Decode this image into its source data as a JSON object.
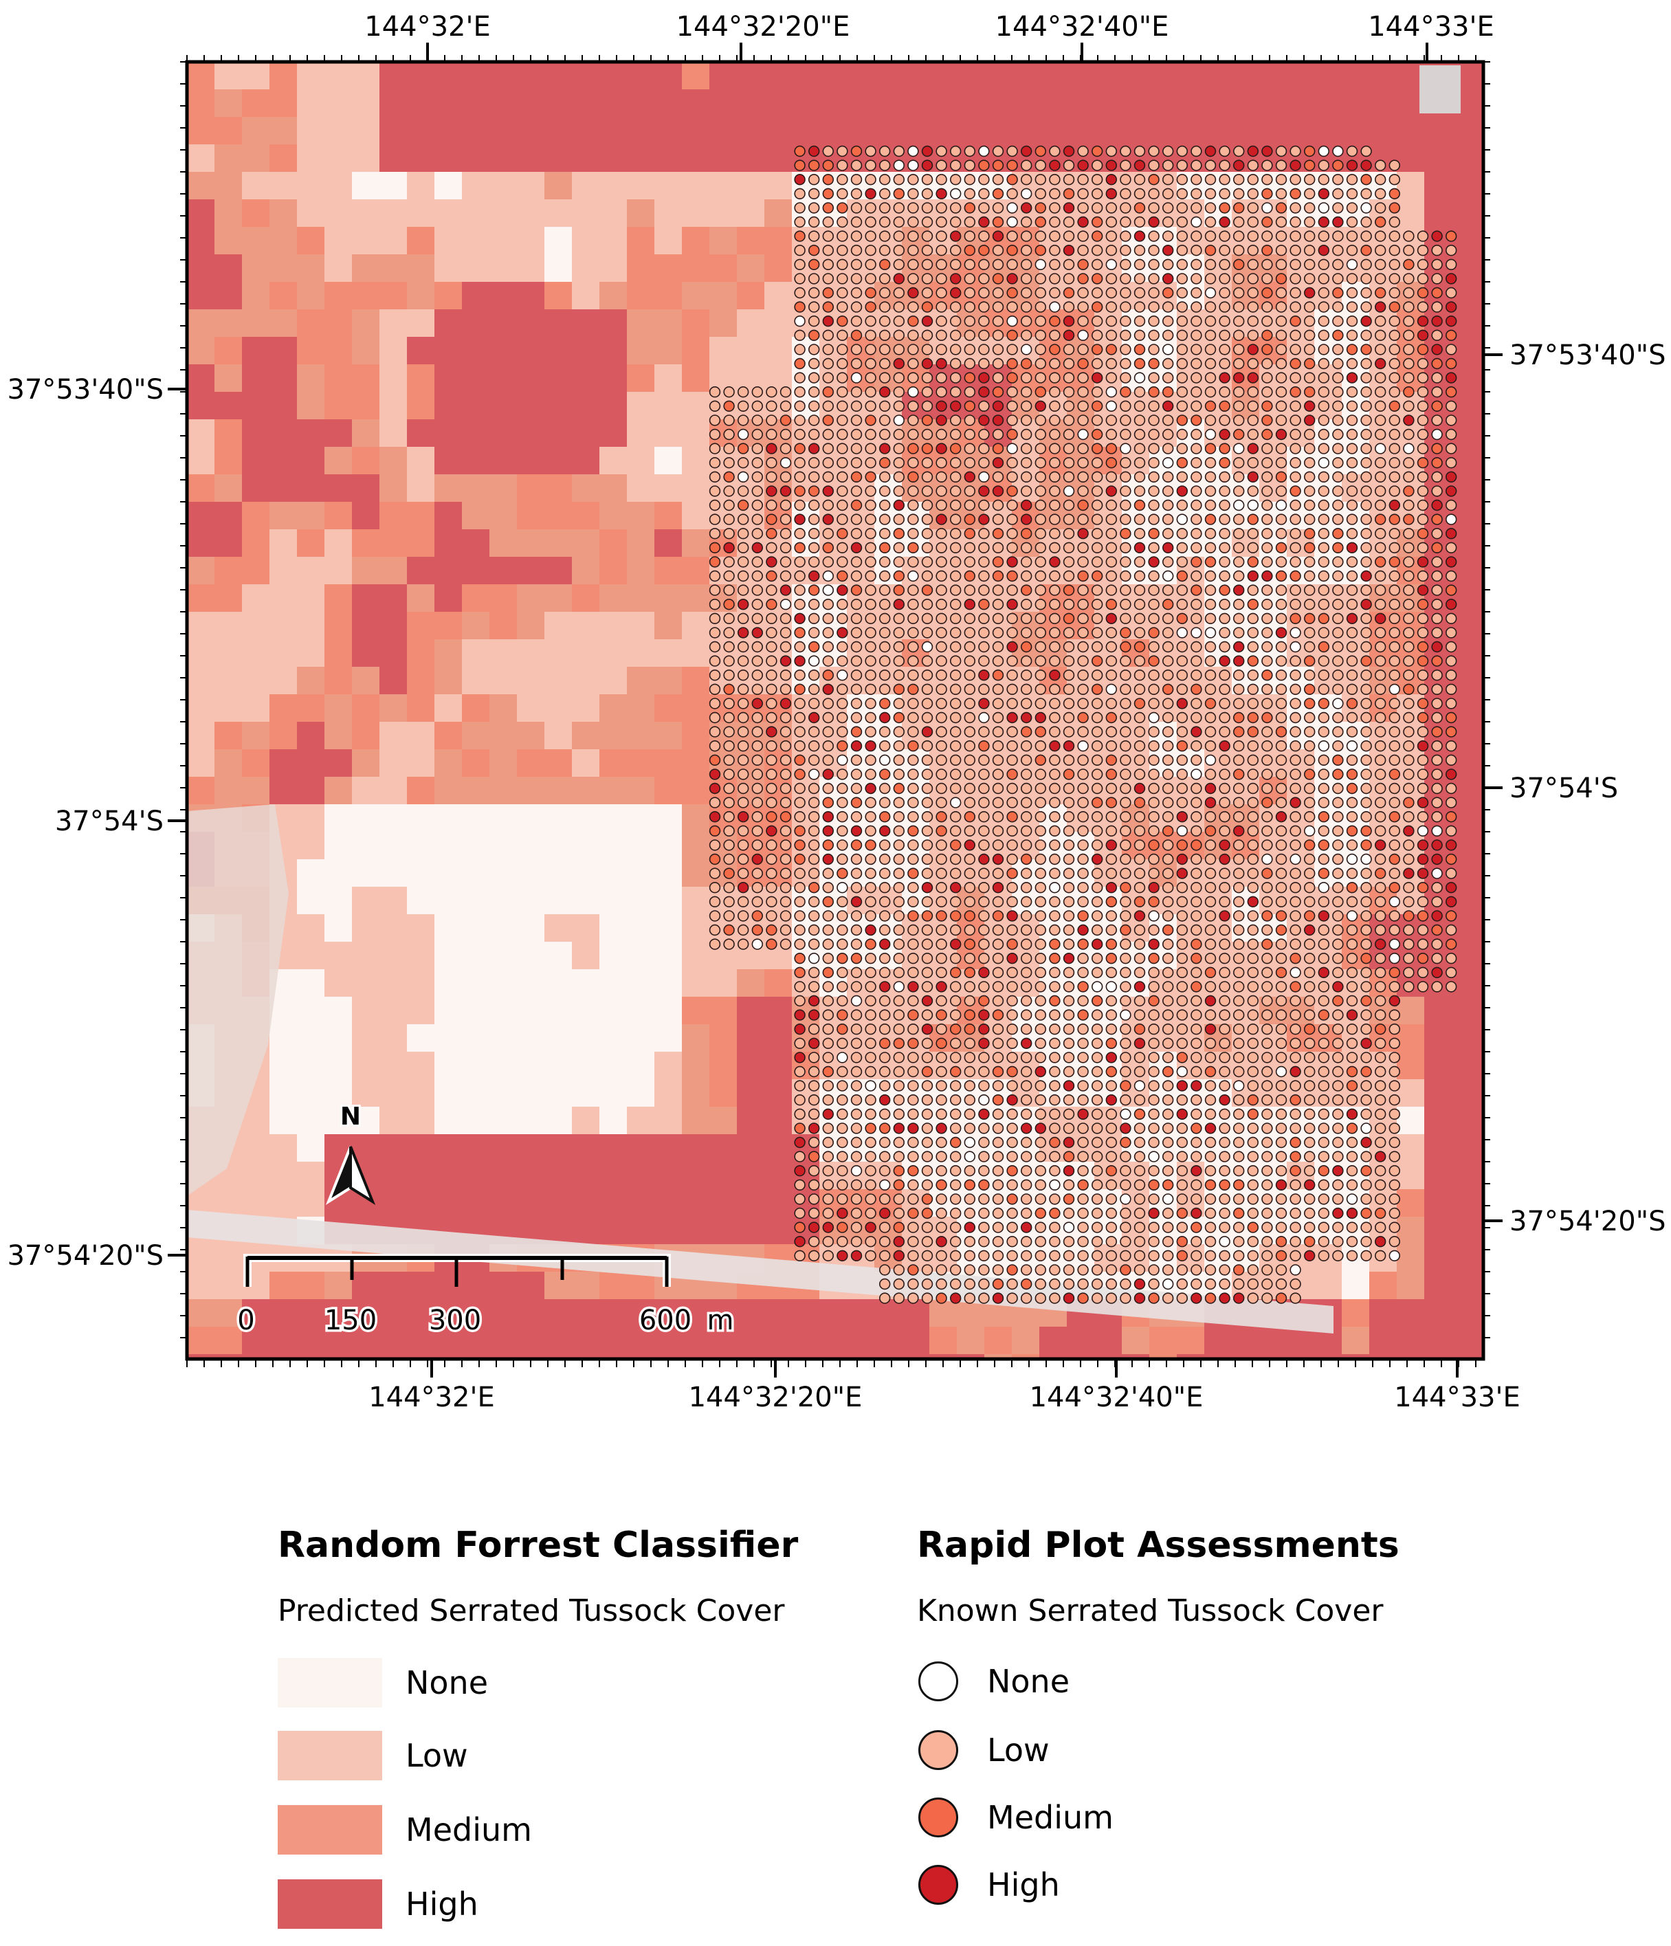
{
  "map": {
    "lon_labels": [
      "144°32'E",
      "144°32'20\"E",
      "144°32'40\"E",
      "144°33'E"
    ],
    "lat_labels": [
      "37°53'40\"S",
      "37°54'S",
      "37°54'20\"S"
    ],
    "north_label": "N",
    "scale": {
      "ticks": [
        "0",
        "150",
        "300",
        "600"
      ],
      "unit": "m"
    },
    "colors": {
      "none": "#fcf5f2",
      "low": "#f7c2b2",
      "medium": "#f28c74",
      "high": "#d8595f",
      "plot_none": "#ffffff",
      "plot_low": "#f9b59a",
      "plot_medium": "#f46b48",
      "plot_high": "#cc1e24"
    }
  },
  "legend_classifier": {
    "title": "Random Forrest Classifier",
    "subtitle": "Predicted Serrated Tussock Cover",
    "items": [
      {
        "label": "None",
        "color": "#fbf4f1"
      },
      {
        "label": "Low",
        "color": "#f7c5b6"
      },
      {
        "label": "Medium",
        "color": "#f29782"
      },
      {
        "label": "High",
        "color": "#d85b60"
      }
    ]
  },
  "legend_plots": {
    "title": "Rapid Plot Assessments",
    "subtitle": "Known Serrated Tussock Cover",
    "items": [
      {
        "label": "None",
        "color": "#ffffff"
      },
      {
        "label": "Low",
        "color": "#f9b39a"
      },
      {
        "label": "Medium",
        "color": "#f4684a"
      },
      {
        "label": "High",
        "color": "#cc1e24"
      }
    ]
  }
}
